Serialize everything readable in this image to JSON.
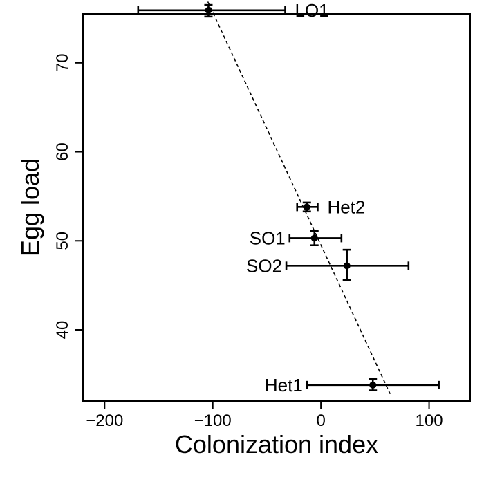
{
  "chart_data": {
    "type": "scatter",
    "title": "",
    "xlabel": "Colonization index",
    "ylabel": "Egg load",
    "xlim": [
      -220,
      138
    ],
    "ylim": [
      32,
      75.5
    ],
    "x_ticks": [
      -200,
      -100,
      0,
      100
    ],
    "y_ticks": [
      40,
      50,
      60,
      70
    ],
    "grid": false,
    "legend": "none",
    "points": [
      {
        "label": "LO1",
        "x": -104,
        "y": 75.9,
        "x_err_low": -169,
        "x_err_high": -33,
        "y_err_low": 75.2,
        "y_err_high": 76.5,
        "label_side": "right"
      },
      {
        "label": "Het2",
        "x": -13,
        "y": 53.8,
        "x_err_low": -22,
        "x_err_high": -3,
        "y_err_low": 53.3,
        "y_err_high": 54.3,
        "label_side": "right"
      },
      {
        "label": "SO1",
        "x": -6,
        "y": 50.3,
        "x_err_low": -29,
        "x_err_high": 19,
        "y_err_low": 49.5,
        "y_err_high": 51.1,
        "label_side": "left"
      },
      {
        "label": "SO2",
        "x": 24,
        "y": 47.2,
        "x_err_low": -32,
        "x_err_high": 81,
        "y_err_low": 45.6,
        "y_err_high": 49.0,
        "label_side": "left"
      },
      {
        "label": "Het1",
        "x": 48,
        "y": 33.8,
        "x_err_low": -13,
        "x_err_high": 109,
        "y_err_low": 33.2,
        "y_err_high": 34.5,
        "label_side": "left"
      }
    ],
    "trend_line": {
      "style": "dashed",
      "x1": -107,
      "y1": 77.5,
      "x2": 64,
      "y2": 32.8
    }
  }
}
